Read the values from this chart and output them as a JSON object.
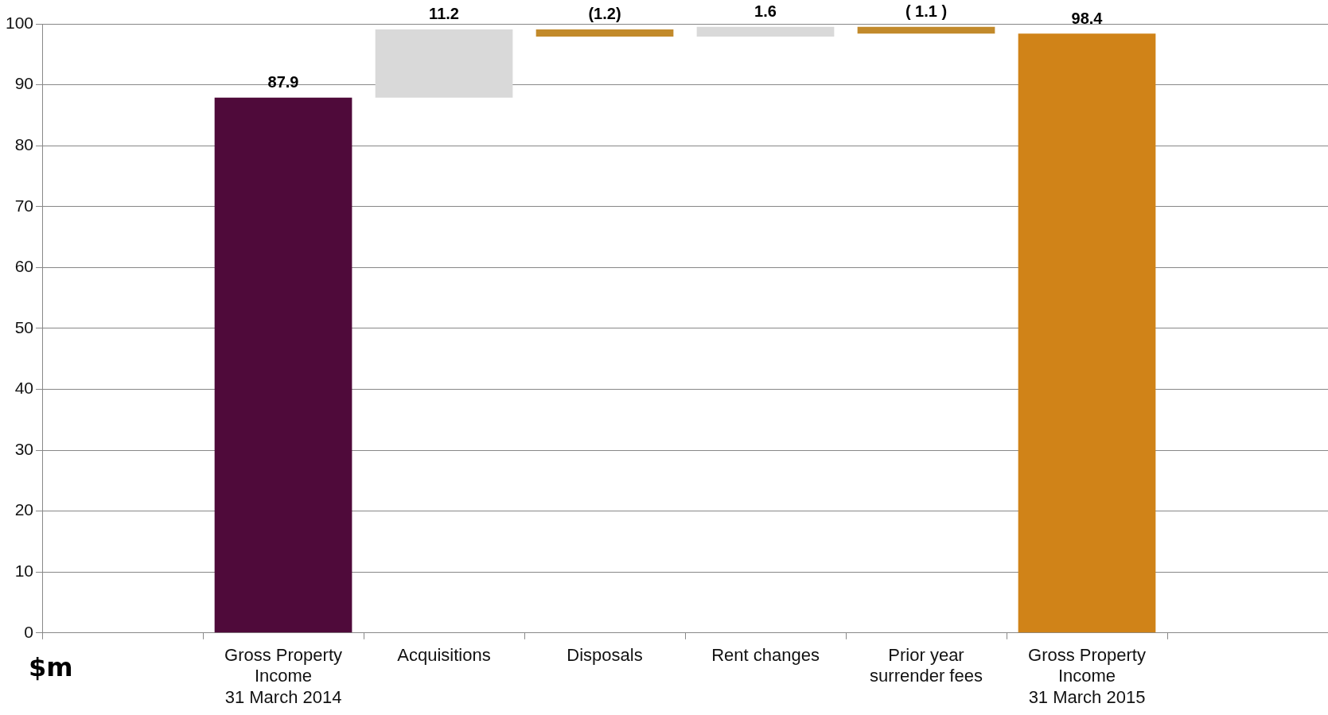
{
  "chart_data": {
    "type": "bar",
    "annotations": [
      "$m"
    ],
    "categories": [
      null,
      "Gross Property\nIncome\n31 March 2014",
      "Acquisitions",
      "Disposals",
      "Rent changes",
      "Prior year\nsurrender fees",
      "Gross Property\nIncome\n31 March 2015",
      null
    ],
    "values": [
      null,
      87.9,
      11.2,
      -1.2,
      1.6,
      -1.1,
      98.4,
      null
    ],
    "base": [
      null,
      0,
      87.9,
      99.1,
      97.9,
      99.5,
      0,
      null
    ],
    "colors": [
      "#d9d9d9",
      "#4f0a3a",
      "#d9d9d9",
      "#c28a2b",
      "#d9d9d9",
      "#c28a2b",
      "#d08318",
      "#d9d9d9"
    ],
    "value_labels": [
      null,
      "87.9",
      "11.2",
      "(1.2)",
      "1.6",
      "( 1.1 )",
      "98.4",
      null
    ],
    "ylim": [
      0,
      100
    ],
    "yticks": [
      0,
      10,
      20,
      30,
      40,
      50,
      60,
      70,
      80,
      90,
      100
    ],
    "grid": "y",
    "legend": false
  }
}
